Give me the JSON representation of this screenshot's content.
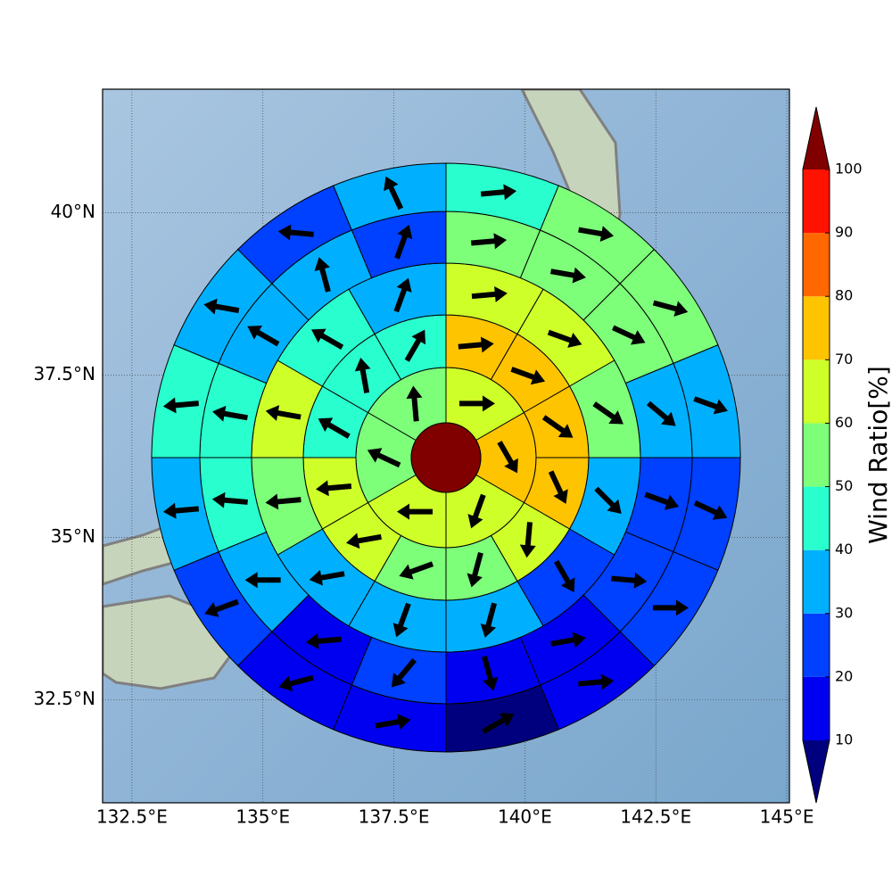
{
  "chart_data": {
    "type": "polar-sector-map",
    "xlim": [
      131.94,
      145.05
    ],
    "ylim": [
      30.91,
      41.9
    ],
    "xticks": [
      {
        "value": 132.5,
        "label": "132.5°E"
      },
      {
        "value": 135,
        "label": "135°E"
      },
      {
        "value": 137.5,
        "label": "137.5°E"
      },
      {
        "value": 140,
        "label": "140°E"
      },
      {
        "value": 142.5,
        "label": "142.5°E"
      },
      {
        "value": 145,
        "label": "145°E"
      }
    ],
    "yticks": [
      {
        "value": 32.5,
        "label": "32.5°N"
      },
      {
        "value": 35,
        "label": "35°N"
      },
      {
        "value": 37.5,
        "label": "37.5°N"
      },
      {
        "value": 40,
        "label": "40°N"
      }
    ],
    "grid": true,
    "center_value": 100,
    "rings": [
      {
        "values": [
          65,
          75,
          65,
          65,
          55,
          55
        ],
        "directions": [
          90,
          150,
          200,
          270,
          295,
          355
        ]
      },
      {
        "values": [
          75,
          75,
          75,
          75,
          65,
          55,
          55,
          65,
          65,
          45,
          45,
          45
        ],
        "directions": [
          85,
          110,
          125,
          155,
          185,
          195,
          250,
          260,
          265,
          300,
          350,
          30
        ]
      },
      {
        "values": [
          65,
          65,
          55,
          35,
          25,
          35,
          35,
          35,
          55,
          65,
          45,
          35
        ],
        "directions": [
          85,
          110,
          125,
          135,
          150,
          195,
          200,
          260,
          265,
          280,
          300,
          20
        ]
      },
      {
        "values": [
          55,
          55,
          55,
          35,
          25,
          25,
          15,
          15,
          25,
          15,
          35,
          45,
          45,
          35,
          35,
          25
        ],
        "directions": [
          85,
          100,
          115,
          130,
          110,
          95,
          80,
          165,
          220,
          265,
          270,
          275,
          280,
          300,
          345,
          20
        ]
      },
      {
        "values": [
          45,
          55,
          55,
          35,
          25,
          25,
          15,
          5,
          15,
          15,
          25,
          35,
          45,
          35,
          25,
          35
        ],
        "directions": [
          85,
          100,
          105,
          110,
          115,
          90,
          85,
          60,
          80,
          255,
          250,
          265,
          265,
          280,
          275,
          335
        ]
      }
    ],
    "colorbar": {
      "label": "Wind Ratio[%]",
      "ticks": [
        10,
        20,
        30,
        40,
        50,
        60,
        70,
        80,
        90,
        100
      ],
      "colors": [
        "#00007f",
        "#0000f0",
        "#0040ff",
        "#00b0ff",
        "#29ffce",
        "#7dff7a",
        "#ceff29",
        "#ffc400",
        "#ff6800",
        "#ff1300",
        "#800000"
      ]
    }
  }
}
